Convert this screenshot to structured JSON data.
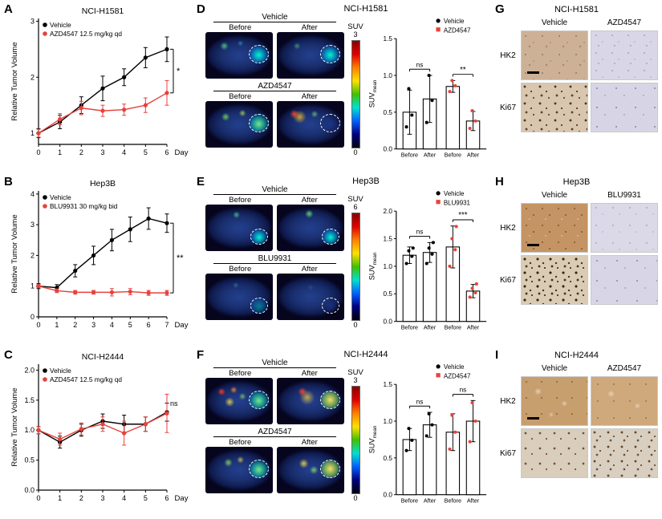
{
  "labels": {
    "before": "Before",
    "after": "After",
    "suv": "SUV"
  },
  "accent_color": "#e8413c",
  "chart_data": {
    "line_charts": [
      {
        "panel": "A",
        "type": "line",
        "title": "NCI-H1581",
        "ylabel": "Relative Tumor Volume",
        "xlabel": "Day",
        "x": [
          0,
          1,
          2,
          3,
          4,
          5,
          6
        ],
        "ylim": [
          0.8,
          3.05
        ],
        "yticks": [
          1,
          2,
          3
        ],
        "ytick_labels": [
          "1",
          "2",
          "3"
        ],
        "series": [
          {
            "name": "Vehicle",
            "color": "#000000",
            "values": [
              1.0,
              1.2,
              1.5,
              1.8,
              2.0,
              2.35,
              2.5
            ],
            "err": [
              0.08,
              0.12,
              0.15,
              0.22,
              0.15,
              0.18,
              0.22
            ]
          },
          {
            "name": "AZD4547 12.5 mg/kg qd",
            "color": "#e8413c",
            "values": [
              1.0,
              1.25,
              1.45,
              1.4,
              1.42,
              1.5,
              1.72
            ],
            "err": [
              0.07,
              0.1,
              0.12,
              0.1,
              0.1,
              0.13,
              0.22
            ]
          }
        ],
        "significance": {
          "type": "bracket",
          "label": "*"
        }
      },
      {
        "panel": "B",
        "type": "line",
        "title": "Hep3B",
        "ylabel": "Relative Tumor Volume",
        "xlabel": "Day",
        "x": [
          0,
          1,
          2,
          3,
          4,
          5,
          6,
          7
        ],
        "ylim": [
          0,
          4.1
        ],
        "yticks": [
          0,
          1,
          2,
          3,
          4
        ],
        "ytick_labels": [
          "0",
          "1",
          "2",
          "3",
          "4"
        ],
        "series": [
          {
            "name": "Vehicle",
            "color": "#000000",
            "values": [
              1.0,
              0.95,
              1.5,
              2.0,
              2.5,
              2.85,
              3.2,
              3.05
            ],
            "err": [
              0.08,
              0.1,
              0.2,
              0.3,
              0.35,
              0.4,
              0.35,
              0.3
            ]
          },
          {
            "name": "BLU9931 30 mg/kg bid",
            "color": "#e8413c",
            "values": [
              1.0,
              0.85,
              0.8,
              0.8,
              0.8,
              0.82,
              0.78,
              0.78
            ],
            "err": [
              0.05,
              0.06,
              0.06,
              0.06,
              0.12,
              0.1,
              0.08,
              0.08
            ]
          }
        ],
        "significance": {
          "type": "bracket",
          "label": "**"
        }
      },
      {
        "panel": "C",
        "type": "line",
        "title": "NCI-H2444",
        "ylabel": "Relative Tumor Volume",
        "xlabel": "Day",
        "x": [
          0,
          1,
          2,
          3,
          4,
          5,
          6
        ],
        "ylim": [
          0,
          2.1
        ],
        "yticks": [
          0,
          0.5,
          1,
          1.5,
          2
        ],
        "ytick_labels": [
          "0.0",
          "0.5",
          "1.0",
          "1.5",
          "2.0"
        ],
        "series": [
          {
            "name": "Vehicle",
            "color": "#000000",
            "values": [
              1.0,
              0.8,
              1.0,
              1.15,
              1.1,
              1.1,
              1.3
            ],
            "err": [
              0.06,
              0.1,
              0.1,
              0.12,
              0.15,
              0.12,
              0.15
            ]
          },
          {
            "name": "AZD4547 12.5 mg/kg qd",
            "color": "#e8413c",
            "values": [
              1.0,
              0.85,
              1.02,
              1.1,
              0.95,
              1.1,
              1.28
            ],
            "err": [
              0.06,
              0.1,
              0.1,
              0.12,
              0.2,
              0.12,
              0.32
            ]
          }
        ],
        "significance": {
          "type": "text",
          "label": "ns"
        }
      }
    ],
    "bar_charts": [
      {
        "panel": "D",
        "type": "bar",
        "title": "NCI-H1581",
        "ylabel_main": "SUV",
        "ylabel_sub": "mean",
        "ylim": [
          0,
          1.5
        ],
        "yticks": [
          0,
          0.5,
          1,
          1.5
        ],
        "ytick_labels": [
          "0.0",
          "0.5",
          "1.0",
          "1.5"
        ],
        "legend": [
          {
            "name": "Vehicle",
            "color": "#000000"
          },
          {
            "name": "AZD4547",
            "color": "#e8413c"
          }
        ],
        "groups": [
          {
            "name": "Vehicle",
            "color": "#000000",
            "sig": "ns",
            "bars": [
              {
                "label": "Before",
                "value": 0.5,
                "err": 0.3,
                "points": [
                  0.3,
                  0.46,
                  0.82
                ]
              },
              {
                "label": "After",
                "value": 0.68,
                "err": 0.32,
                "points": [
                  0.36,
                  0.66,
                  1.0
                ]
              }
            ]
          },
          {
            "name": "AZD4547",
            "color": "#e8413c",
            "sig": "**",
            "bars": [
              {
                "label": "Before",
                "value": 0.85,
                "err": 0.08,
                "points": [
                  0.78,
                  0.86,
                  0.93
                ]
              },
              {
                "label": "After",
                "value": 0.38,
                "err": 0.13,
                "points": [
                  0.28,
                  0.38,
                  0.52
                ]
              }
            ]
          }
        ]
      },
      {
        "panel": "E",
        "type": "bar",
        "title": "Hep3B",
        "ylabel_main": "SUV",
        "ylabel_sub": "mean",
        "ylim": [
          0,
          2
        ],
        "yticks": [
          0,
          0.5,
          1,
          1.5,
          2
        ],
        "ytick_labels": [
          "0.0",
          "0.5",
          "1.0",
          "1.5",
          "2.0"
        ],
        "legend": [
          {
            "name": "Vehicle",
            "color": "#000000"
          },
          {
            "name": "BLU9931",
            "color": "#e8413c"
          }
        ],
        "groups": [
          {
            "name": "Vehicle",
            "color": "#000000",
            "sig": "ns",
            "bars": [
              {
                "label": "Before",
                "value": 1.2,
                "err": 0.15,
                "points": [
                  1.05,
                  1.18,
                  1.28,
                  1.33
                ]
              },
              {
                "label": "After",
                "value": 1.25,
                "err": 0.18,
                "points": [
                  1.05,
                  1.22,
                  1.33,
                  1.43
                ]
              }
            ]
          },
          {
            "name": "BLU9931",
            "color": "#e8413c",
            "sig": "***",
            "bars": [
              {
                "label": "Before",
                "value": 1.35,
                "err": 0.38,
                "points": [
                  1.0,
                  1.3,
                  1.5,
                  1.72
                ]
              },
              {
                "label": "After",
                "value": 0.55,
                "err": 0.12,
                "points": [
                  0.44,
                  0.52,
                  0.6,
                  0.68
                ]
              }
            ]
          }
        ]
      },
      {
        "panel": "F",
        "type": "bar",
        "title": "NCI-H2444",
        "ylabel_main": "SUV",
        "ylabel_sub": "mean",
        "ylim": [
          0,
          1.5
        ],
        "yticks": [
          0,
          0.5,
          1,
          1.5
        ],
        "ytick_labels": [
          "0.0",
          "0.5",
          "1.0",
          "1.5"
        ],
        "legend": [
          {
            "name": "Vehicle",
            "color": "#000000"
          },
          {
            "name": "AZD4547",
            "color": "#e8413c"
          }
        ],
        "groups": [
          {
            "name": "Vehicle",
            "color": "#000000",
            "sig": "ns",
            "bars": [
              {
                "label": "Before",
                "value": 0.75,
                "err": 0.15,
                "points": [
                  0.6,
                  0.74,
                  0.9
                ]
              },
              {
                "label": "After",
                "value": 0.95,
                "err": 0.17,
                "points": [
                  0.8,
                  0.95,
                  1.1
                ]
              }
            ]
          },
          {
            "name": "AZD4547",
            "color": "#e8413c",
            "sig": "ns",
            "bars": [
              {
                "label": "Before",
                "value": 0.85,
                "err": 0.25,
                "points": [
                  0.62,
                  0.85,
                  1.08
                ]
              },
              {
                "label": "After",
                "value": 1.0,
                "err": 0.28,
                "points": [
                  0.72,
                  1.0,
                  1.25
                ]
              }
            ]
          }
        ]
      }
    ]
  },
  "pet_panels": [
    {
      "panel": "D",
      "title": "NCI-H1581",
      "group1": "Vehicle",
      "group2": "AZD4547",
      "suv_max": "3",
      "suv_min": "0"
    },
    {
      "panel": "E",
      "title": "Hep3B",
      "group1": "Vehicle",
      "group2": "BLU9931",
      "suv_max": "6",
      "suv_min": "0"
    },
    {
      "panel": "F",
      "title": "NCI-H2444",
      "group1": "Vehicle",
      "group2": "AZD4547",
      "suv_max": "3",
      "suv_min": "0"
    }
  ],
  "ihc_panels": [
    {
      "panel": "G",
      "title": "NCI-H1581",
      "col1": "Vehicle",
      "col2": "AZD4547",
      "row1": "HK2",
      "row2": "Ki67"
    },
    {
      "panel": "H",
      "title": "Hep3B",
      "col1": "Vehicle",
      "col2": "BLU9931",
      "row1": "HK2",
      "row2": "Ki67"
    },
    {
      "panel": "I",
      "title": "NCI-H2444",
      "col1": "Vehicle",
      "col2": "AZD4547",
      "row1": "HK2",
      "row2": "Ki67"
    }
  ]
}
